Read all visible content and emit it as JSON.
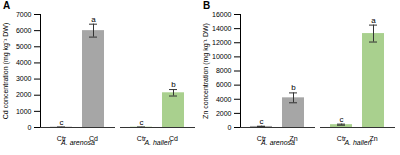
{
  "chart_data": [
    {
      "type": "bar",
      "title": "A",
      "y_label": "Cd concentration (mg kg⁻¹ DW)",
      "categories": [
        "Ctr",
        "Cd",
        "Ctr",
        "Cd"
      ],
      "groups": [
        "A. arenosa",
        "A. arenosa",
        "A. halleri",
        "A. halleri"
      ],
      "values": [
        20,
        6000,
        20,
        2150
      ],
      "errors": [
        5,
        400,
        5,
        200
      ],
      "annotations": [
        "c",
        "a",
        "c",
        "b"
      ],
      "colors": [
        "#a6a6a6",
        "#a6a6a6",
        "#a9d08e",
        "#a9d08e"
      ],
      "ylim": [
        0,
        7000
      ],
      "yticks": [
        0,
        1000,
        2000,
        3000,
        4000,
        5000,
        6000,
        7000
      ]
    },
    {
      "type": "bar",
      "title": "B",
      "y_label": "Zn concentration (mg kg⁻¹ DW)",
      "categories": [
        "Ctr",
        "Zn",
        "Ctr",
        "Zn"
      ],
      "groups": [
        "A. arenosa",
        "A. arenosa",
        "A. halleri",
        "A. halleri"
      ],
      "values": [
        150,
        4200,
        400,
        13300
      ],
      "errors": [
        30,
        700,
        80,
        1200
      ],
      "annotations": [
        "c",
        "b",
        "c",
        "a"
      ],
      "colors": [
        "#a6a6a6",
        "#a6a6a6",
        "#a9d08e",
        "#a9d08e"
      ],
      "ylim": [
        0,
        16000
      ],
      "yticks": [
        0,
        2000,
        4000,
        6000,
        8000,
        10000,
        12000,
        14000,
        16000
      ]
    }
  ]
}
